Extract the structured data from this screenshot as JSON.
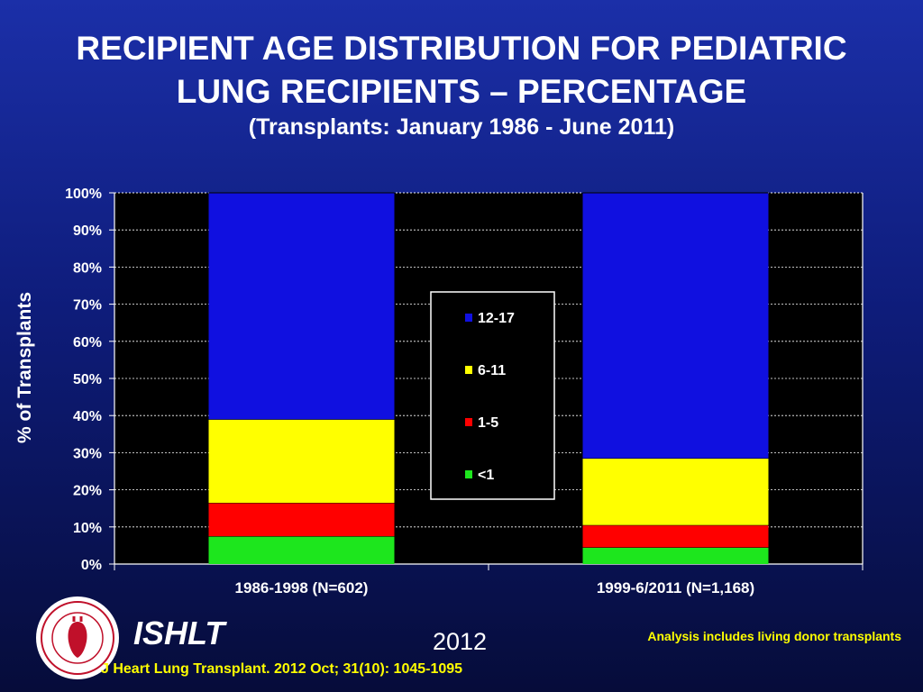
{
  "header": {
    "title_line1": "RECIPIENT AGE DISTRIBUTION FOR PEDIATRIC",
    "title_line2": "LUNG RECIPIENTS – PERCENTAGE",
    "subtitle": "(Transplants: January 1986 - June 2011)"
  },
  "chart_data": {
    "type": "bar",
    "stacked": true,
    "categories": [
      "1986-1998 (N=602)",
      "1999-6/2011 (N=1,168)"
    ],
    "series": [
      {
        "name": "<1",
        "values": [
          7.5,
          4.5
        ],
        "color": "#1de61d"
      },
      {
        "name": "1-5",
        "values": [
          9,
          6
        ],
        "color": "#ff0000"
      },
      {
        "name": "6-11",
        "values": [
          22.5,
          18
        ],
        "color": "#ffff00"
      },
      {
        "name": "12-17",
        "values": [
          61,
          71.5
        ],
        "color": "#1010e0"
      }
    ],
    "legend_order": [
      "12-17",
      "6-11",
      "1-5",
      "<1"
    ],
    "ylabel": "% of Transplants",
    "ylim": [
      0,
      100
    ],
    "yticks": [
      0,
      10,
      20,
      30,
      40,
      50,
      60,
      70,
      80,
      90,
      100
    ],
    "ytick_labels": [
      "0%",
      "10%",
      "20%",
      "30%",
      "40%",
      "50%",
      "60%",
      "70%",
      "80%",
      "90%",
      "100%"
    ],
    "grid": true,
    "legend_position": "center",
    "plot_background": "#000000"
  },
  "footer": {
    "org": "ISHLT",
    "year": "2012",
    "note": "Analysis includes living donor transplants",
    "citation": "J Heart Lung Transplant.  2012 Oct; 31(10): 1045-1095",
    "logo_icon": "ishlt-seal-icon"
  }
}
